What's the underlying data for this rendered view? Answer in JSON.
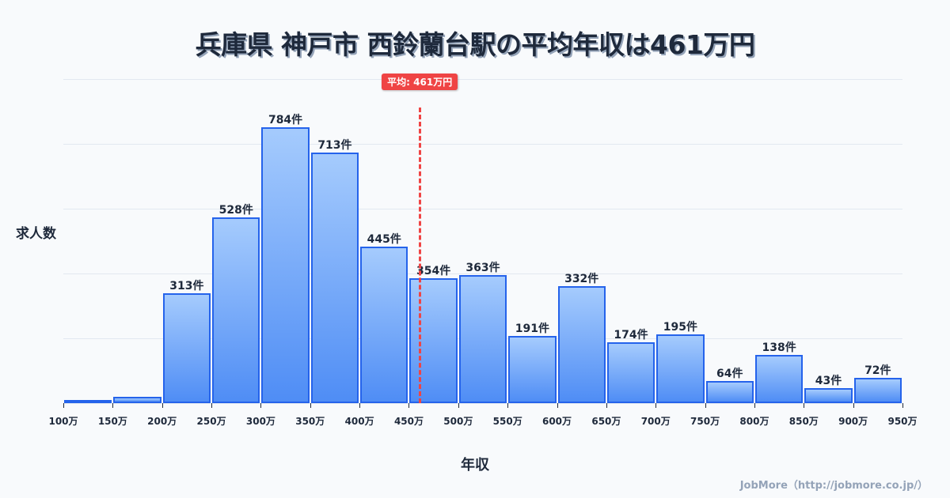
{
  "title": "兵庫県 神戸市 西鈴蘭台駅の平均年収は461万円",
  "y_axis_label": "求人数",
  "x_axis_label": "年収",
  "mean_badge": "平均: 461万円",
  "credit": "JobMore（http://jobmore.co.jp/）",
  "colors": {
    "bar_border": "#2563eb",
    "bar_top": "#a5cbfd",
    "bar_bottom": "#4f8df5",
    "mean": "#ef4444",
    "text": "#1e293b"
  },
  "chart_data": {
    "type": "bar",
    "title": "兵庫県 神戸市 西鈴蘭台駅の平均年収は461万円",
    "xlabel": "年収",
    "ylabel": "求人数",
    "x_ticks": [
      "100万",
      "150万",
      "200万",
      "250万",
      "300万",
      "350万",
      "400万",
      "450万",
      "500万",
      "550万",
      "600万",
      "650万",
      "700万",
      "750万",
      "800万",
      "850万",
      "900万",
      "950万"
    ],
    "categories": [
      "100-150万",
      "150-200万",
      "200-250万",
      "250-300万",
      "300-350万",
      "350-400万",
      "400-450万",
      "450-500万",
      "500-550万",
      "550-600万",
      "600-650万",
      "650-700万",
      "700-750万",
      "750-800万",
      "800-850万",
      "850-900万",
      "900-950万"
    ],
    "values": [
      1,
      18,
      313,
      528,
      784,
      713,
      445,
      354,
      363,
      191,
      332,
      174,
      195,
      64,
      138,
      43,
      72
    ],
    "labels": [
      "",
      "",
      "313件",
      "528件",
      "784件",
      "713件",
      "445件",
      "354件",
      "363件",
      "191件",
      "332件",
      "174件",
      "195件",
      "64件",
      "138件",
      "43件",
      "72件"
    ],
    "mean": 461,
    "mean_label": "平均: 461万円",
    "ylim": [
      0,
      921
    ],
    "grid": true,
    "legend": null
  }
}
